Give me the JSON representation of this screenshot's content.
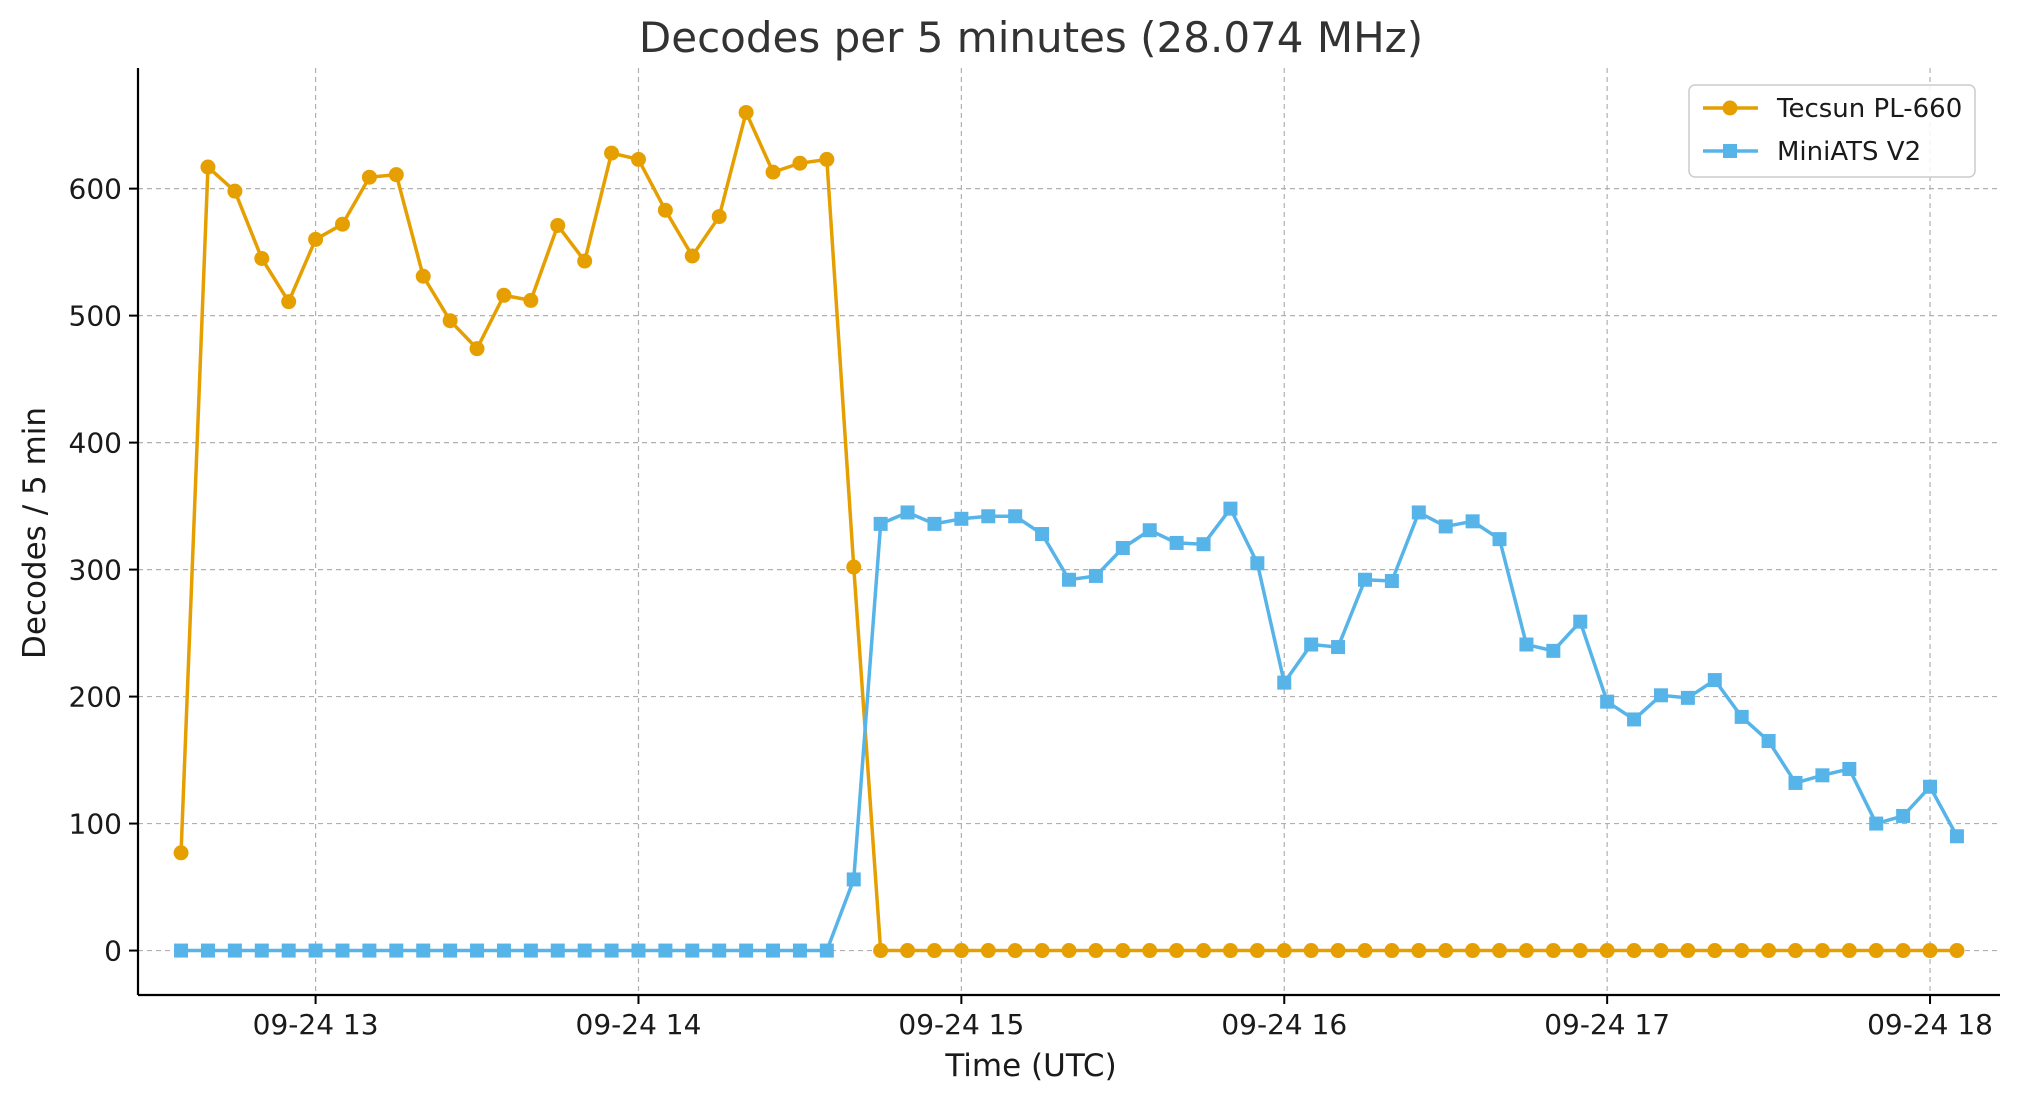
{
  "chart_data": {
    "type": "line",
    "title": "Decodes per 5 minutes (28.074 MHz)",
    "xlabel": "Time (UTC)",
    "ylabel": "Decodes / 5 min",
    "x_start": "2024-09-24T12:35",
    "x_step_minutes": 5,
    "xlim": [
      "2024-09-24T12:27",
      "2024-09-24T18:13"
    ],
    "ylim": [
      -35,
      695
    ],
    "yticks": [
      0,
      100,
      200,
      300,
      400,
      500,
      600
    ],
    "xticks": [
      {
        "t": "2024-09-24T13:00",
        "label": "09-24 13"
      },
      {
        "t": "2024-09-24T14:00",
        "label": "09-24 14"
      },
      {
        "t": "2024-09-24T15:00",
        "label": "09-24 15"
      },
      {
        "t": "2024-09-24T16:00",
        "label": "09-24 16"
      },
      {
        "t": "2024-09-24T17:00",
        "label": "09-24 17"
      },
      {
        "t": "2024-09-24T18:00",
        "label": "09-24 18"
      }
    ],
    "grid": true,
    "legend_position": "top-right",
    "series": [
      {
        "name": "Tecsun PL-660",
        "color": "#E69F00",
        "marker": "circle",
        "values": [
          77,
          617,
          598,
          545,
          511,
          560,
          572,
          609,
          611,
          531,
          496,
          474,
          516,
          512,
          571,
          543,
          628,
          623,
          583,
          547,
          578,
          660,
          613,
          620,
          623,
          302,
          0,
          0,
          0,
          0,
          0,
          0,
          0,
          0,
          0,
          0,
          0,
          0,
          0,
          0,
          0,
          0,
          0,
          0,
          0,
          0,
          0,
          0,
          0,
          0,
          0,
          0,
          0,
          0,
          0,
          0,
          0,
          0,
          0,
          0,
          0,
          0,
          0,
          0,
          0,
          0,
          0
        ]
      },
      {
        "name": "MiniATS V2",
        "color": "#56B4E9",
        "marker": "square",
        "values": [
          0,
          0,
          0,
          0,
          0,
          0,
          0,
          0,
          0,
          0,
          0,
          0,
          0,
          0,
          0,
          0,
          0,
          0,
          0,
          0,
          0,
          0,
          0,
          0,
          0,
          56,
          336,
          345,
          336,
          340,
          342,
          342,
          328,
          292,
          295,
          317,
          331,
          321,
          320,
          348,
          305,
          211,
          241,
          239,
          292,
          291,
          345,
          334,
          338,
          324,
          241,
          236,
          259,
          196,
          182,
          201,
          199,
          213,
          184,
          165,
          132,
          138,
          143,
          100,
          106,
          129,
          90
        ]
      }
    ]
  }
}
